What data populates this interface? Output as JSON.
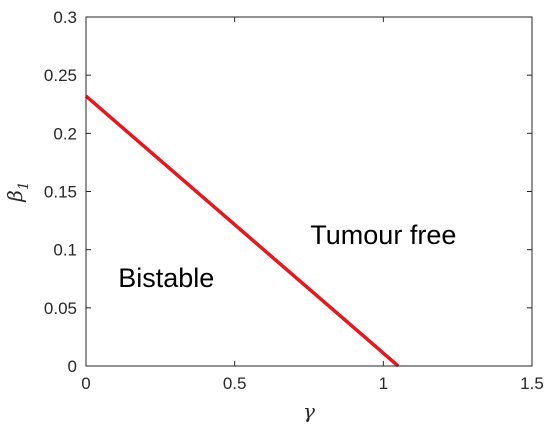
{
  "chart_data": {
    "type": "line",
    "xlabel": "γ",
    "ylabel": "β",
    "ylabel_subscript": "1",
    "xlim": [
      0,
      1.5
    ],
    "ylim": [
      0,
      0.3
    ],
    "x_ticks": [
      0,
      0.5,
      1,
      1.5
    ],
    "x_tick_labels": [
      "0",
      "0.5",
      "1",
      "1.5"
    ],
    "y_ticks": [
      0,
      0.05,
      0.1,
      0.15,
      0.2,
      0.25,
      0.3
    ],
    "y_tick_labels": [
      "0",
      "0.05",
      "0.1",
      "0.15",
      "0.2",
      "0.25",
      "0.3"
    ],
    "grid": false,
    "series": [
      {
        "color": "#e8171d",
        "x": [
          0,
          1.05
        ],
        "y": [
          0.232,
          0
        ]
      }
    ],
    "annotations": [
      {
        "text": "Tumour free",
        "x": 1.0,
        "y": 0.105
      },
      {
        "text": "Bistable",
        "x": 0.27,
        "y": 0.068
      }
    ]
  }
}
